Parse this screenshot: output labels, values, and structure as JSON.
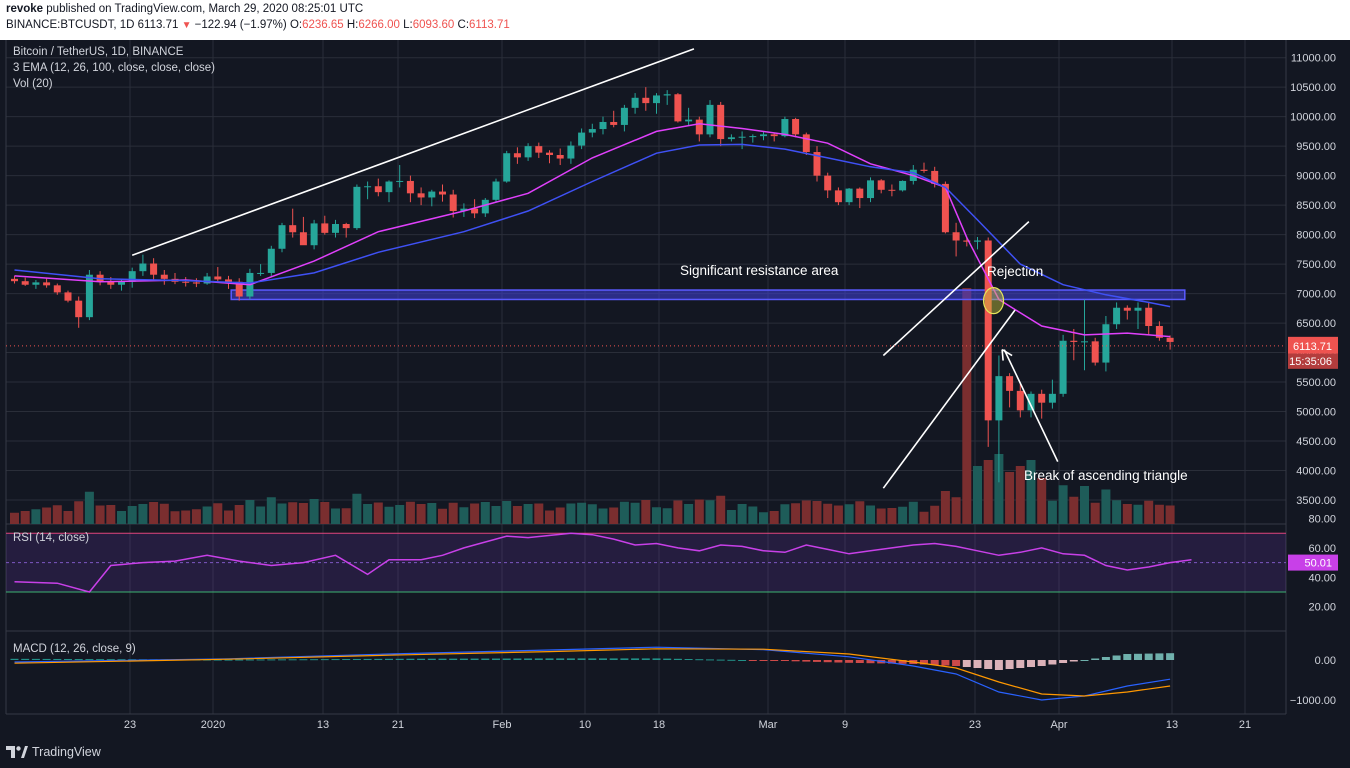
{
  "header": {
    "author": "revoke",
    "published_text": " published on TradingView.com, March 29, 2020 08:25:01 UTC",
    "symbol": "BINANCE:BTCUSDT, 1D",
    "last_price": "6113.71",
    "change": "−122.94 (−1.97%)",
    "open_label": "O:",
    "open": "6236.65",
    "high_label": "H:",
    "high": "6266.00",
    "low_label": "L:",
    "low": "6093.60",
    "close_label": "C:",
    "close": "6113.71"
  },
  "legend": {
    "title": "Bitcoin / TetherUS, 1D, BINANCE",
    "ema": "3 EMA (12, 26, 100, close, close, close)",
    "vol": "Vol (20)",
    "rsi": "RSI (14, close)",
    "macd": "MACD (12, 26, close, 9)"
  },
  "footer": {
    "brand": "TradingView"
  },
  "colors": {
    "background": "#131722",
    "up": "#26a69a",
    "down": "#ef5350",
    "ema12": "#e040fb",
    "ema26": "#3f51f5",
    "resistance_box": "#3f3fd8",
    "rsi_line": "#c840e8",
    "macd_line": "#2962ff",
    "signal_line": "#ff9800"
  },
  "chart_data": [
    {
      "type": "candlestick",
      "title": "Bitcoin / TetherUS, 1D, BINANCE",
      "x_ticks": [
        "23",
        "2020",
        "13",
        "21",
        "Feb",
        "10",
        "18",
        "Mar",
        "9",
        "23",
        "Apr",
        "13",
        "21"
      ],
      "y_ticks": [
        "11000.00",
        "10500.00",
        "10000.00",
        "9500.00",
        "9000.00",
        "8500.00",
        "8000.00",
        "7500.00",
        "7000.00",
        "6500.00",
        "6000.00",
        "5500.00",
        "5000.00",
        "4500.00",
        "4000.00",
        "3500.00"
      ],
      "ylim": [
        3000,
        11300
      ],
      "last_price_label": "6113.71",
      "countdown_label": "15:35:06",
      "ohlc": [
        [
          7250,
          7300,
          7170,
          7210
        ],
        [
          7210,
          7270,
          7130,
          7150
        ],
        [
          7150,
          7230,
          7080,
          7190
        ],
        [
          7190,
          7260,
          7100,
          7140
        ],
        [
          7140,
          7170,
          6980,
          7020
        ],
        [
          7020,
          7050,
          6850,
          6880
        ],
        [
          6880,
          6950,
          6420,
          6600
        ],
        [
          6600,
          7400,
          6550,
          7320
        ],
        [
          7320,
          7380,
          7140,
          7200
        ],
        [
          7200,
          7280,
          7080,
          7150
        ],
        [
          7150,
          7250,
          7050,
          7200
        ],
        [
          7200,
          7440,
          7100,
          7380
        ],
        [
          7380,
          7660,
          7300,
          7510
        ],
        [
          7510,
          7600,
          7220,
          7320
        ],
        [
          7320,
          7400,
          7150,
          7250
        ],
        [
          7250,
          7350,
          7160,
          7200
        ],
        [
          7200,
          7280,
          7120,
          7190
        ],
        [
          7190,
          7260,
          7110,
          7170
        ],
        [
          7170,
          7350,
          7150,
          7290
        ],
        [
          7290,
          7450,
          7180,
          7240
        ],
        [
          7240,
          7300,
          7080,
          7200
        ],
        [
          7200,
          7260,
          6880,
          6950
        ],
        [
          6950,
          7420,
          6900,
          7350
        ],
        [
          7350,
          7500,
          7300,
          7350
        ],
        [
          7350,
          7810,
          7300,
          7760
        ],
        [
          7760,
          8200,
          7700,
          8160
        ],
        [
          8160,
          8440,
          7950,
          8040
        ],
        [
          8040,
          8300,
          7900,
          7820
        ],
        [
          7820,
          8250,
          7750,
          8190
        ],
        [
          8190,
          8320,
          8000,
          8030
        ],
        [
          8030,
          8250,
          7950,
          8180
        ],
        [
          8180,
          8200,
          7950,
          8110
        ],
        [
          8110,
          8850,
          8080,
          8810
        ],
        [
          8810,
          8900,
          8600,
          8820
        ],
        [
          8820,
          8950,
          8650,
          8720
        ],
        [
          8720,
          8920,
          8550,
          8900
        ],
        [
          8900,
          9180,
          8800,
          8910
        ],
        [
          8910,
          9000,
          8550,
          8700
        ],
        [
          8700,
          8800,
          8500,
          8630
        ],
        [
          8630,
          8760,
          8480,
          8730
        ],
        [
          8730,
          8850,
          8560,
          8680
        ],
        [
          8680,
          8760,
          8290,
          8400
        ],
        [
          8400,
          8530,
          8300,
          8440
        ],
        [
          8440,
          8600,
          8280,
          8360
        ],
        [
          8360,
          8620,
          8300,
          8590
        ],
        [
          8590,
          8950,
          8550,
          8900
        ],
        [
          8900,
          9420,
          8880,
          9380
        ],
        [
          9380,
          9480,
          9200,
          9310
        ],
        [
          9310,
          9550,
          9250,
          9500
        ],
        [
          9500,
          9560,
          9300,
          9390
        ],
        [
          9390,
          9430,
          9210,
          9350
        ],
        [
          9350,
          9460,
          9180,
          9290
        ],
        [
          9290,
          9580,
          9200,
          9510
        ],
        [
          9510,
          9800,
          9450,
          9730
        ],
        [
          9730,
          9880,
          9650,
          9790
        ],
        [
          9790,
          10000,
          9700,
          9910
        ],
        [
          9910,
          10100,
          9820,
          9860
        ],
        [
          9860,
          10200,
          9750,
          10150
        ],
        [
          10150,
          10400,
          10050,
          10320
        ],
        [
          10320,
          10500,
          10100,
          10230
        ],
        [
          10230,
          10400,
          10050,
          10360
        ],
        [
          10360,
          10450,
          10200,
          10380
        ],
        [
          10380,
          10400,
          9900,
          9920
        ],
        [
          9920,
          10150,
          9850,
          9950
        ],
        [
          9950,
          10000,
          9580,
          9700
        ],
        [
          9700,
          10280,
          9650,
          10200
        ],
        [
          10200,
          10250,
          9500,
          9620
        ],
        [
          9620,
          9700,
          9580,
          9650
        ],
        [
          9650,
          9750,
          9450,
          9660
        ],
        [
          9660,
          9700,
          9560,
          9670
        ],
        [
          9670,
          9750,
          9600,
          9700
        ],
        [
          9700,
          9720,
          9580,
          9670
        ],
        [
          9670,
          10000,
          9650,
          9960
        ],
        [
          9960,
          9980,
          9650,
          9700
        ],
        [
          9700,
          9730,
          9350,
          9400
        ],
        [
          9400,
          9500,
          8900,
          9000
        ],
        [
          9000,
          9050,
          8620,
          8750
        ],
        [
          8750,
          8800,
          8500,
          8550
        ],
        [
          8550,
          8790,
          8500,
          8780
        ],
        [
          8780,
          8800,
          8450,
          8620
        ],
        [
          8620,
          8970,
          8550,
          8920
        ],
        [
          8920,
          8940,
          8700,
          8760
        ],
        [
          8760,
          8850,
          8650,
          8750
        ],
        [
          8750,
          8920,
          8730,
          8910
        ],
        [
          8910,
          9180,
          8850,
          9100
        ],
        [
          9100,
          9220,
          9050,
          9080
        ],
        [
          9080,
          9150,
          8800,
          8860
        ],
        [
          8860,
          8900,
          8020,
          8040
        ],
        [
          8040,
          8200,
          7630,
          7900
        ],
        [
          7900,
          7960,
          7800,
          7880
        ],
        [
          7880,
          7960,
          7750,
          7900
        ],
        [
          7900,
          7950,
          4400,
          4850
        ],
        [
          4850,
          5950,
          3800,
          5600
        ],
        [
          5600,
          5650,
          5070,
          5350
        ],
        [
          5350,
          5480,
          4900,
          5020
        ],
        [
          5020,
          5340,
          4900,
          5300
        ],
        [
          5300,
          5370,
          4880,
          5150
        ],
        [
          5150,
          5540,
          5050,
          5300
        ],
        [
          5300,
          6300,
          5250,
          6200
        ],
        [
          6200,
          6400,
          5870,
          6180
        ],
        [
          6180,
          6900,
          5700,
          6190
        ],
        [
          6190,
          6250,
          5780,
          5830
        ],
        [
          5830,
          6620,
          5680,
          6480
        ],
        [
          6480,
          6850,
          6400,
          6760
        ],
        [
          6760,
          6800,
          6560,
          6710
        ],
        [
          6710,
          6850,
          6400,
          6760
        ],
        [
          6760,
          6850,
          6300,
          6450
        ],
        [
          6450,
          6530,
          6200,
          6250
        ],
        [
          6250,
          6290,
          6050,
          6180
        ]
      ],
      "volume_peak_day": 89,
      "ema_12": [
        [
          0,
          7300
        ],
        [
          8,
          7200
        ],
        [
          16,
          7230
        ],
        [
          22,
          7150
        ],
        [
          28,
          7550
        ],
        [
          34,
          8050
        ],
        [
          42,
          8400
        ],
        [
          48,
          8700
        ],
        [
          54,
          9300
        ],
        [
          60,
          9750
        ],
        [
          64,
          9880
        ],
        [
          68,
          9800
        ],
        [
          72,
          9700
        ],
        [
          76,
          9550
        ],
        [
          80,
          9200
        ],
        [
          84,
          9000
        ],
        [
          87,
          8800
        ],
        [
          89,
          7950
        ],
        [
          92,
          6900
        ],
        [
          96,
          6450
        ],
        [
          100,
          6300
        ],
        [
          104,
          6330
        ],
        [
          108,
          6270
        ]
      ],
      "ema_26": [
        [
          0,
          7400
        ],
        [
          8,
          7250
        ],
        [
          16,
          7220
        ],
        [
          22,
          7180
        ],
        [
          28,
          7350
        ],
        [
          34,
          7700
        ],
        [
          42,
          8050
        ],
        [
          48,
          8400
        ],
        [
          54,
          8900
        ],
        [
          60,
          9380
        ],
        [
          64,
          9520
        ],
        [
          68,
          9530
        ],
        [
          72,
          9450
        ],
        [
          76,
          9300
        ],
        [
          80,
          9150
        ],
        [
          84,
          9050
        ],
        [
          87,
          8800
        ],
        [
          90,
          8250
        ],
        [
          94,
          7500
        ],
        [
          98,
          7150
        ],
        [
          102,
          6980
        ],
        [
          106,
          6850
        ],
        [
          108,
          6780
        ]
      ],
      "resistance_box": {
        "y_low": 6900,
        "y_high": 7060,
        "x_start_day": 21,
        "x_end_day": 109
      },
      "annotations": [
        "Significant resistance area",
        "Rejection",
        "Break of ascending triangle"
      ]
    },
    {
      "type": "line",
      "title": "RSI (14, close)",
      "y_ticks": [
        "80.00",
        "60.00",
        "40.00",
        "20.00"
      ],
      "ylim": [
        10,
        85
      ],
      "bands": [
        30,
        70
      ],
      "midline": 50,
      "current_label": "50.01",
      "values": [
        [
          0,
          37
        ],
        [
          4,
          36
        ],
        [
          7,
          30
        ],
        [
          9,
          48
        ],
        [
          12,
          50
        ],
        [
          15,
          51
        ],
        [
          18,
          55
        ],
        [
          21,
          51
        ],
        [
          24,
          48
        ],
        [
          27,
          50
        ],
        [
          30,
          55
        ],
        [
          33,
          42
        ],
        [
          35,
          52
        ],
        [
          38,
          52
        ],
        [
          40,
          55
        ],
        [
          42,
          60
        ],
        [
          44,
          64
        ],
        [
          46,
          68
        ],
        [
          48,
          67
        ],
        [
          52,
          70
        ],
        [
          54,
          69
        ],
        [
          56,
          66
        ],
        [
          58,
          62
        ],
        [
          60,
          63
        ],
        [
          62,
          60
        ],
        [
          64,
          58
        ],
        [
          66,
          62
        ],
        [
          68,
          61
        ],
        [
          70,
          58
        ],
        [
          72,
          57
        ],
        [
          74,
          62
        ],
        [
          76,
          59
        ],
        [
          78,
          56
        ],
        [
          80,
          58
        ],
        [
          82,
          60
        ],
        [
          84,
          62
        ],
        [
          86,
          63
        ],
        [
          88,
          61
        ],
        [
          90,
          58
        ],
        [
          92,
          55
        ],
        [
          94,
          57
        ],
        [
          96,
          60
        ],
        [
          98,
          56
        ],
        [
          100,
          55
        ],
        [
          102,
          48
        ],
        [
          104,
          45
        ],
        [
          106,
          47
        ],
        [
          108,
          50
        ],
        [
          110,
          52
        ]
      ]
    },
    {
      "type": "bar",
      "title": "MACD (12, 26, close, 9)",
      "y_ticks": [
        "0.00",
        "−1000.00"
      ],
      "ylim": [
        -1100,
        400
      ],
      "zero_level": 0,
      "macd_line": [
        [
          0,
          -50
        ],
        [
          20,
          30
        ],
        [
          35,
          150
        ],
        [
          50,
          250
        ],
        [
          60,
          320
        ],
        [
          70,
          260
        ],
        [
          78,
          80
        ],
        [
          84,
          -150
        ],
        [
          88,
          -350
        ],
        [
          92,
          -800
        ],
        [
          96,
          -1000
        ],
        [
          100,
          -900
        ],
        [
          104,
          -650
        ],
        [
          108,
          -480
        ]
      ],
      "signal_line": [
        [
          0,
          -80
        ],
        [
          20,
          20
        ],
        [
          35,
          120
        ],
        [
          50,
          210
        ],
        [
          60,
          280
        ],
        [
          70,
          270
        ],
        [
          78,
          150
        ],
        [
          84,
          -50
        ],
        [
          88,
          -200
        ],
        [
          92,
          -550
        ],
        [
          96,
          -850
        ],
        [
          100,
          -900
        ],
        [
          104,
          -800
        ],
        [
          108,
          -650
        ]
      ]
    }
  ]
}
